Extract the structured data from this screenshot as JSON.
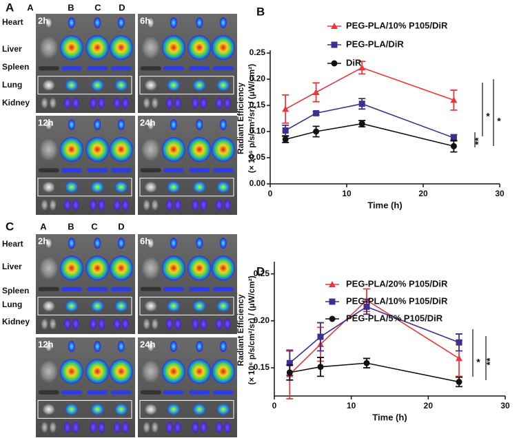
{
  "panels": [
    {
      "letter": "A",
      "columns": [
        "A",
        "B",
        "C",
        "D"
      ],
      "organs": [
        "Heart",
        "Liver",
        "Spleen",
        "Lung",
        "Kidney"
      ],
      "times": [
        "2h",
        "6h",
        "12h",
        "24h"
      ]
    },
    {
      "letter": "C",
      "columns": [
        "A",
        "B",
        "C",
        "D"
      ],
      "organs": [
        "Heart",
        "Liver",
        "Spleen",
        "Lung",
        "Kidney"
      ],
      "times": [
        "2h",
        "6h",
        "12h",
        "24h"
      ]
    }
  ],
  "chart_data": [
    {
      "type": "line",
      "panel_label": "B",
      "xlabel": "Time (h)",
      "ylabel": "Radiant Efficiency",
      "ylabel_units": "(× 10⁶ p/s/cm²/sr) / (μW/cm²)",
      "x": [
        2,
        6,
        12,
        24
      ],
      "xlim": [
        0,
        30
      ],
      "xticks": [
        0,
        10,
        20,
        30
      ],
      "ylim": [
        0,
        0.25
      ],
      "yticks": [
        {
          "value": 0,
          "label": "0.00"
        },
        {
          "value": 0.05,
          "label": "0.05"
        },
        {
          "value": 0.1,
          "label": "0.10"
        },
        {
          "value": 0.15,
          "label": "0.15"
        },
        {
          "value": 0.2,
          "label": "0.20"
        },
        {
          "value": 0.25,
          "label": "0.25"
        }
      ],
      "series": [
        {
          "name": "PEG-PLA/10% P105/DiR",
          "color": "#e8383d",
          "marker": "triangle",
          "values": [
            0.143,
            0.175,
            0.222,
            0.16
          ],
          "errors": [
            0.027,
            0.018,
            0.012,
            0.019
          ]
        },
        {
          "name": "PEG-PLA/DiR",
          "color": "#3d2f8e",
          "marker": "square",
          "values": [
            0.102,
            0.135,
            0.153,
            0.088
          ],
          "errors": [
            0.01,
            0.003,
            0.01,
            0.006
          ]
        },
        {
          "name": "DiR",
          "color": "#111111",
          "marker": "circle",
          "values": [
            0.085,
            0.1,
            0.115,
            0.072
          ],
          "errors": [
            0.006,
            0.01,
            0.006,
            0.011
          ]
        }
      ],
      "annotations": [
        "*",
        "*",
        "**"
      ]
    },
    {
      "type": "line",
      "panel_label": "D",
      "xlabel": "Time (h)",
      "ylabel": "Radiant Efficiency",
      "ylabel_units": "(× 10⁶ p/s/cm²/sr) / (μW/cm²)",
      "x": [
        2,
        6,
        12,
        24
      ],
      "xlim": [
        0,
        30
      ],
      "xticks": [
        0,
        10,
        20,
        30
      ],
      "ylim": [
        0.12,
        0.26
      ],
      "yticks": [
        {
          "value": 0.15,
          "label": "0.15"
        },
        {
          "value": 0.2,
          "label": "0.20"
        },
        {
          "value": 0.25,
          "label": "0.25"
        }
      ],
      "series": [
        {
          "name": "PEG-PLA/20% P105/DiR",
          "color": "#e8383d",
          "marker": "triangle",
          "values": [
            0.143,
            0.175,
            0.222,
            0.16
          ],
          "errors": [
            0.026,
            0.018,
            0.012,
            0.019
          ]
        },
        {
          "name": "PEG-PLA/10% P105/DiR",
          "color": "#3d2f8e",
          "marker": "square",
          "values": [
            0.155,
            0.183,
            0.215,
            0.177
          ],
          "errors": [
            0.013,
            0.015,
            0.008,
            0.009
          ]
        },
        {
          "name": "PEG-PLA/5% P105/DiR",
          "color": "#111111",
          "marker": "circle",
          "values": [
            0.145,
            0.151,
            0.155,
            0.135
          ],
          "errors": [
            0.008,
            0.01,
            0.005,
            0.005
          ]
        }
      ],
      "annotations": [
        "*",
        "**"
      ]
    }
  ]
}
